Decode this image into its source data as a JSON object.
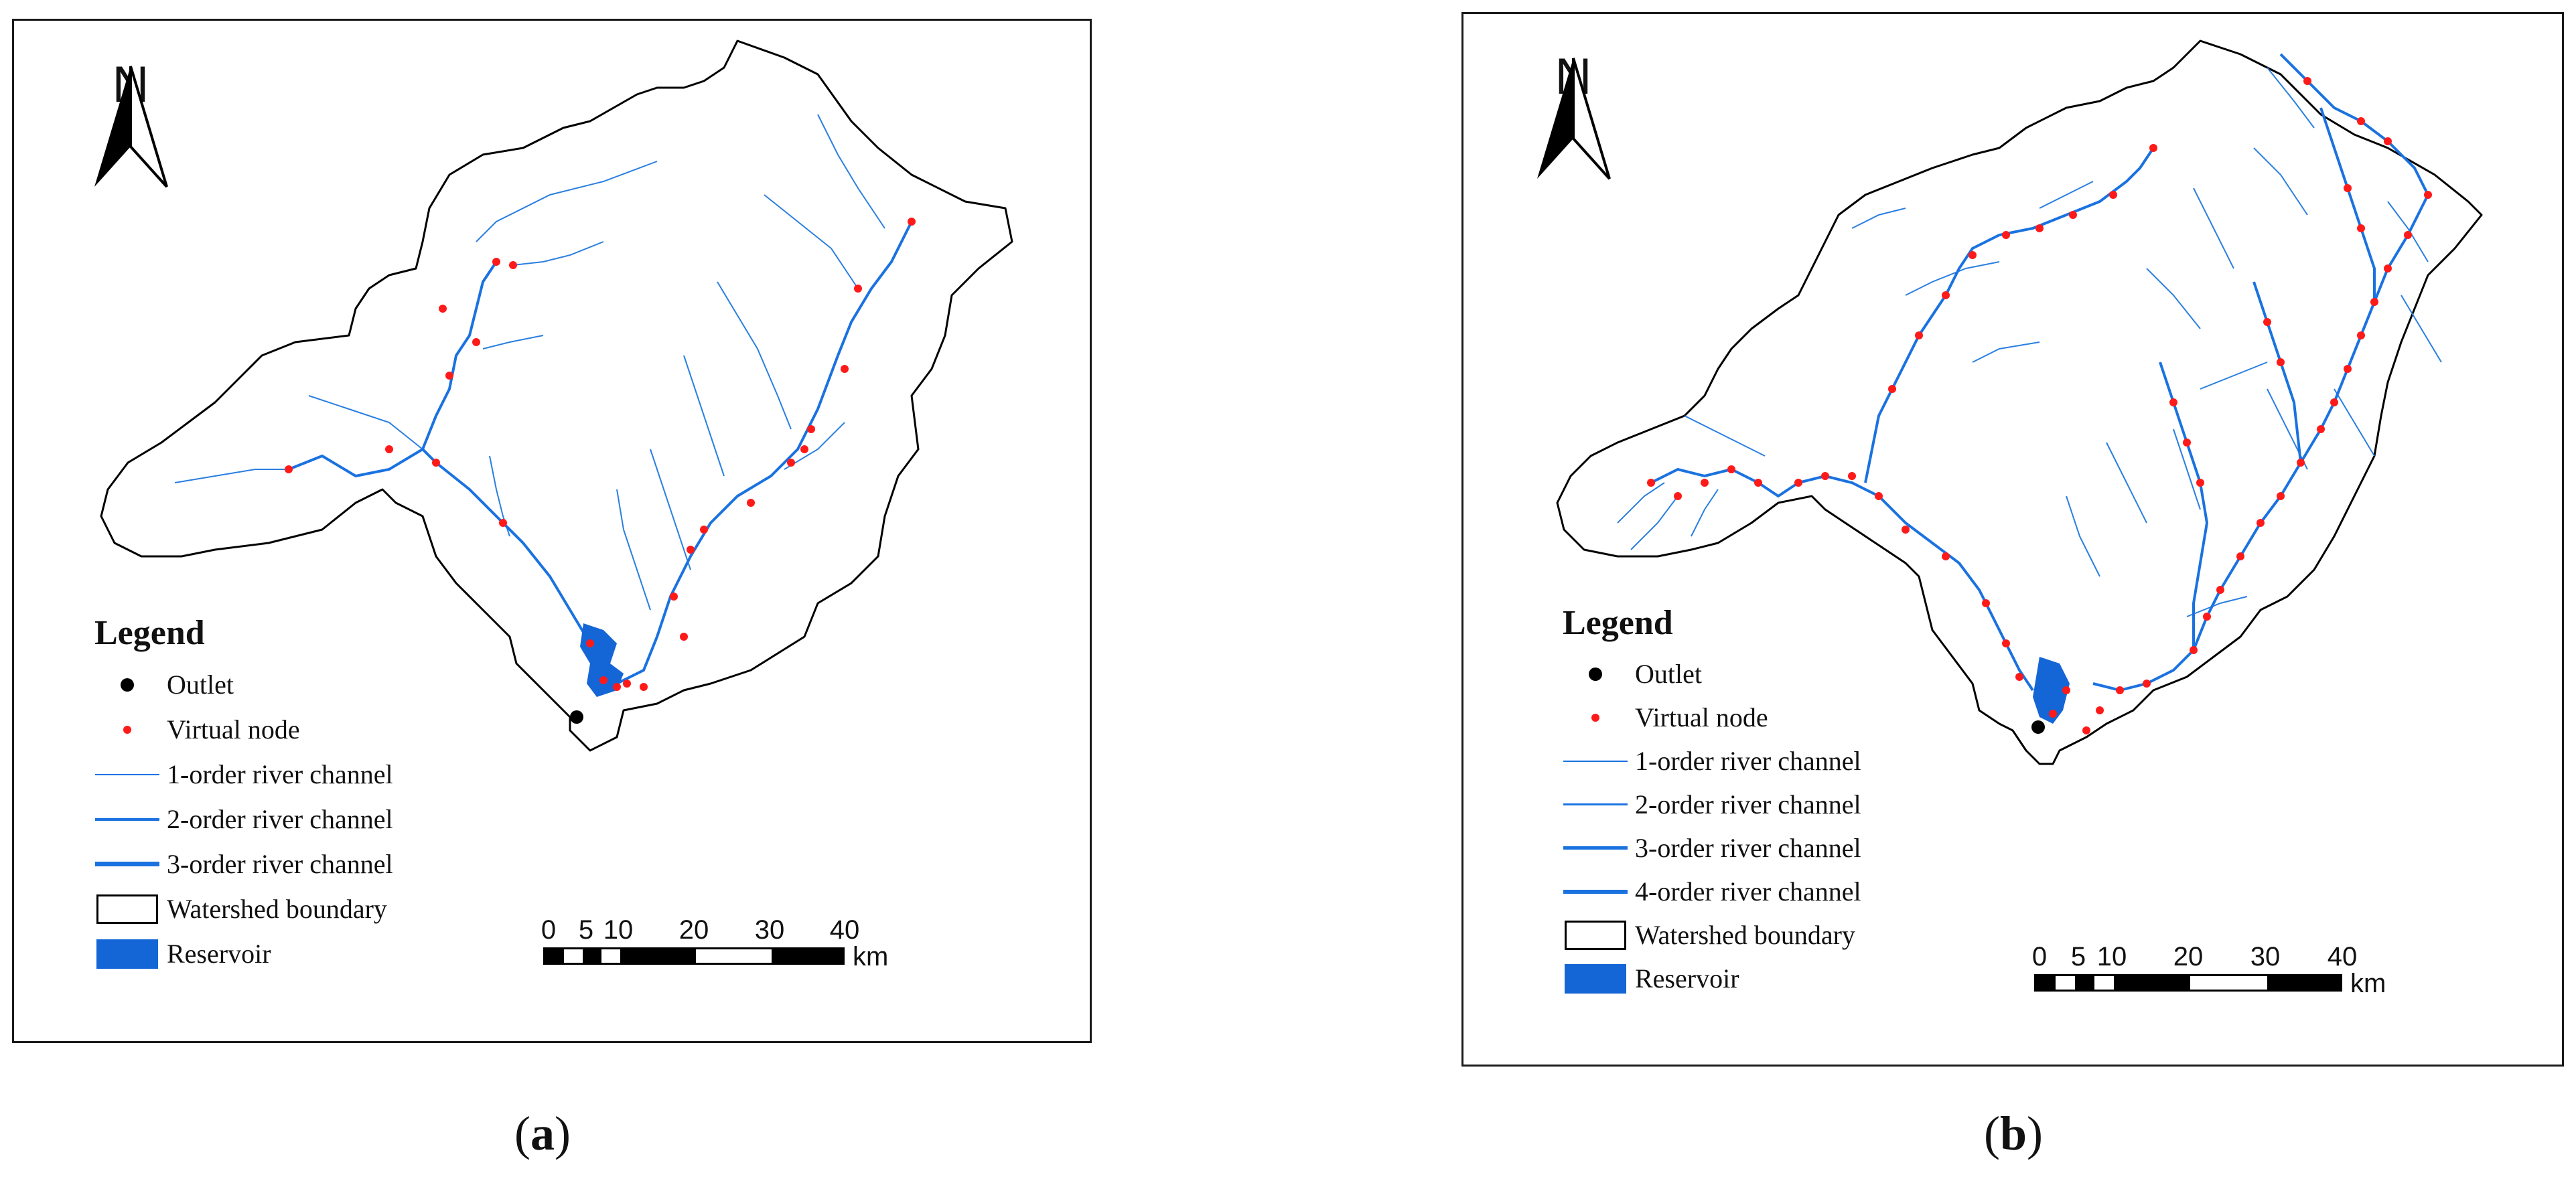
{
  "panels": [
    {
      "id": "a",
      "caption_open": "(",
      "caption_letter": "a",
      "caption_close": ")",
      "north_letter": "N",
      "legend": {
        "title": "Legend",
        "items": [
          {
            "symbol": "outlet",
            "label": "Outlet"
          },
          {
            "symbol": "virtual-node",
            "label": "Virtual node"
          },
          {
            "symbol": "river-1",
            "label": "1-order river channel"
          },
          {
            "symbol": "river-2",
            "label": "2-order river channel"
          },
          {
            "symbol": "river-3",
            "label": "3-order river channel"
          },
          {
            "symbol": "watershed",
            "label": "Watershed boundary"
          },
          {
            "symbol": "reservoir",
            "label": "Reservoir"
          }
        ]
      },
      "scale_bar": {
        "ticks": [
          "0",
          "5",
          "10",
          "20",
          "30",
          "40"
        ],
        "unit": "km"
      }
    },
    {
      "id": "b",
      "caption_open": "(",
      "caption_letter": "b",
      "caption_close": ")",
      "north_letter": "N",
      "legend": {
        "title": "Legend",
        "items": [
          {
            "symbol": "outlet",
            "label": "Outlet"
          },
          {
            "symbol": "virtual-node",
            "label": "Virtual node"
          },
          {
            "symbol": "river-1",
            "label": "1-order river channel"
          },
          {
            "symbol": "river-2",
            "label": "2-order river channel"
          },
          {
            "symbol": "river-3",
            "label": "3-order river channel"
          },
          {
            "symbol": "river-4",
            "label": "4-order river channel"
          },
          {
            "symbol": "watershed",
            "label": "Watershed boundary"
          },
          {
            "symbol": "reservoir",
            "label": "Reservoir"
          }
        ]
      },
      "scale_bar": {
        "ticks": [
          "0",
          "5",
          "10",
          "20",
          "30",
          "40"
        ],
        "unit": "km"
      }
    }
  ],
  "colors": {
    "river": "#1a72e0",
    "reservoir": "#1466d6",
    "virtual_node": "#ff1a1a",
    "outlet": "#000000",
    "boundary": "#000000"
  }
}
